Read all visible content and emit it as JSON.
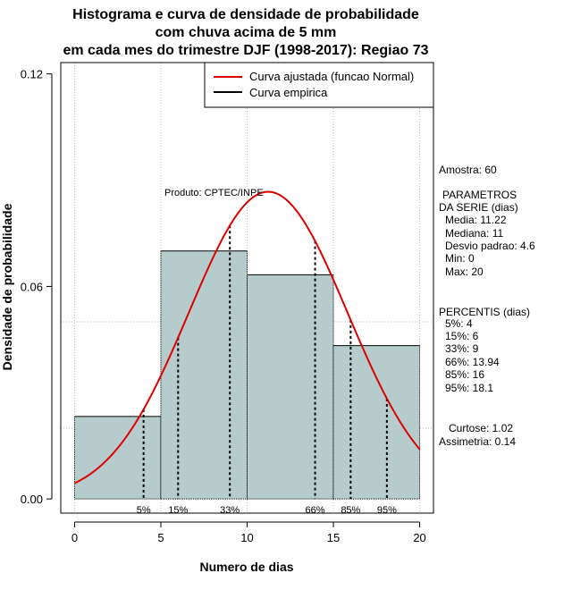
{
  "chart_data": {
    "type": "bar",
    "title_lines": [
      "Histograma e curva de densidade de probabilidade",
      "com chuva acima de 5 mm",
      "em cada mes do trimestre DJF (1998-2017): Regiao 73"
    ],
    "xlabel": "Numero de dias",
    "ylabel": "Densidade de probabilidade",
    "xlim": [
      -0.8,
      20.8
    ],
    "ylim": [
      -0.004,
      0.1232
    ],
    "x_ticks": [
      "0",
      "5",
      "10",
      "15",
      "20"
    ],
    "x_tick_values": [
      0,
      5,
      10,
      15,
      20
    ],
    "y_ticks": [
      "0.00",
      "0.06",
      "0.12"
    ],
    "y_tick_values": [
      0.0,
      0.06,
      0.12
    ],
    "grid": true,
    "grid_x": [
      0,
      5,
      10,
      15,
      20
    ],
    "grid_y": [
      0.02,
      0.05
    ],
    "bars": [
      {
        "x0": 0,
        "x1": 5,
        "density": 0.0233
      },
      {
        "x0": 5,
        "x1": 10,
        "density": 0.07
      },
      {
        "x0": 10,
        "x1": 15,
        "density": 0.0633
      },
      {
        "x0": 15,
        "x1": 20,
        "density": 0.0433
      }
    ],
    "bar_color": "#b6cccc",
    "fitted_curve": {
      "name": "Curva ajustada (funcao Normal)",
      "distribution": "normal",
      "mean": 11.22,
      "sd": 4.6,
      "x_range": [
        0,
        20
      ],
      "color": "#dd0000"
    },
    "empirical_curve": {
      "name": "Curva empirica",
      "color": "#000000"
    },
    "legend_position": "top-right",
    "percentile_lines": [
      {
        "x": 4,
        "label": "5%"
      },
      {
        "x": 6,
        "label": "15%"
      },
      {
        "x": 9,
        "label": "33%"
      },
      {
        "x": 13.94,
        "label": "66%"
      },
      {
        "x": 16,
        "label": "85%"
      },
      {
        "x": 18.1,
        "label": "95%"
      }
    ],
    "annotation": "Produto: CPTEC/INPE"
  },
  "stats_panel": {
    "amostra": "Amostra: 60",
    "param_title_1": "PARAMETROS",
    "param_title_2": "DA SERIE (dias)",
    "media": "Media: 11.22",
    "mediana": "Mediana: 11",
    "desvio": "Desvio padrao: 4.6",
    "min": "Min: 0",
    "max": "Max: 20",
    "percentis_title": "PERCENTIS (dias)",
    "p5": "5%: 4",
    "p15": "15%: 6",
    "p33": "33%: 9",
    "p66": "66%: 13.94",
    "p85": "85%: 16",
    "p95": "95%: 18.1",
    "curtose": "Curtose: 1.02",
    "assimetria": "Assimetria: 0.14"
  }
}
